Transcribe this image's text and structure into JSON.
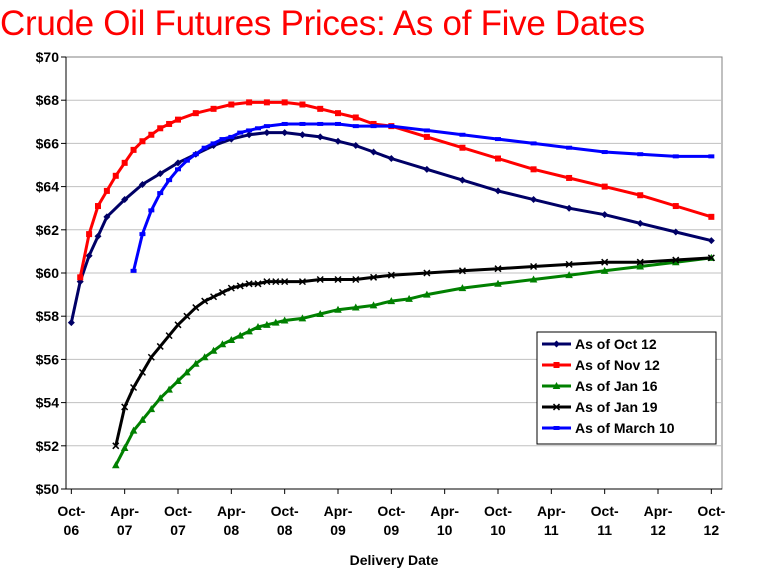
{
  "chart_data": {
    "type": "line",
    "title": "Crude Oil Futures Prices:  As of Five Dates",
    "xlabel": "Delivery Date",
    "ylabel": "",
    "ylim": [
      50,
      70
    ],
    "y_ticks": [
      "$50",
      "$52",
      "$54",
      "$56",
      "$58",
      "$60",
      "$62",
      "$64",
      "$66",
      "$68",
      "$70"
    ],
    "y_tick_values": [
      50,
      52,
      54,
      56,
      58,
      60,
      62,
      64,
      66,
      68,
      70
    ],
    "x_ticks": [
      {
        "line1": "Oct-",
        "line2": "06",
        "month_index": 0
      },
      {
        "line1": "Apr-",
        "line2": "07",
        "month_index": 6
      },
      {
        "line1": "Oct-",
        "line2": "07",
        "month_index": 12
      },
      {
        "line1": "Apr-",
        "line2": "08",
        "month_index": 18
      },
      {
        "line1": "Oct-",
        "line2": "08",
        "month_index": 24
      },
      {
        "line1": "Apr-",
        "line2": "09",
        "month_index": 30
      },
      {
        "line1": "Oct-",
        "line2": "09",
        "month_index": 36
      },
      {
        "line1": "Apr-",
        "line2": "10",
        "month_index": 42
      },
      {
        "line1": "Oct-",
        "line2": "10",
        "month_index": 48
      },
      {
        "line1": "Apr-",
        "line2": "11",
        "month_index": 54
      },
      {
        "line1": "Oct-",
        "line2": "11",
        "month_index": 60
      },
      {
        "line1": "Apr-",
        "line2": "12",
        "month_index": 66
      },
      {
        "line1": "Oct-",
        "line2": "12",
        "month_index": 72
      }
    ],
    "x_range_months": [
      -0.6,
      73.2
    ],
    "x_note": "x values are months since Oct-06",
    "legend_position": "bottom-right",
    "series": [
      {
        "name": "As of Oct 12",
        "color": "#000066",
        "marker": "diamond",
        "x": [
          0,
          1,
          2,
          3,
          4,
          6,
          8,
          10,
          12,
          14,
          16,
          18,
          20,
          22,
          24,
          26,
          28,
          30,
          32,
          34,
          36,
          40,
          44,
          48,
          52,
          56,
          60,
          64,
          68,
          72
        ],
        "y": [
          57.7,
          59.6,
          60.8,
          61.7,
          62.6,
          63.4,
          64.1,
          64.6,
          65.1,
          65.5,
          65.9,
          66.2,
          66.4,
          66.5,
          66.5,
          66.4,
          66.3,
          66.1,
          65.9,
          65.6,
          65.3,
          64.8,
          64.3,
          63.8,
          63.4,
          63.0,
          62.7,
          62.3,
          61.9,
          61.5
        ]
      },
      {
        "name": "As of Nov 12",
        "color": "#ff0000",
        "marker": "square",
        "x": [
          1,
          2,
          3,
          4,
          5,
          6,
          7,
          8,
          9,
          10,
          11,
          12,
          14,
          16,
          18,
          20,
          22,
          24,
          26,
          28,
          30,
          32,
          34,
          36,
          40,
          44,
          48,
          52,
          56,
          60,
          64,
          68,
          72
        ],
        "y": [
          59.8,
          61.8,
          63.1,
          63.8,
          64.5,
          65.1,
          65.7,
          66.1,
          66.4,
          66.7,
          66.9,
          67.1,
          67.4,
          67.6,
          67.8,
          67.9,
          67.9,
          67.9,
          67.8,
          67.6,
          67.4,
          67.2,
          66.9,
          66.8,
          66.3,
          65.8,
          65.3,
          64.8,
          64.4,
          64.0,
          63.6,
          63.1,
          62.6
        ]
      },
      {
        "name": "As of Jan 16",
        "color": "#008000",
        "marker": "triangle",
        "x": [
          5,
          6,
          7,
          8,
          9,
          10,
          11,
          12,
          13,
          14,
          15,
          16,
          17,
          18,
          19,
          20,
          21,
          22,
          23,
          24,
          26,
          28,
          30,
          32,
          34,
          36,
          38,
          40,
          44,
          48,
          52,
          56,
          60,
          64,
          68,
          72
        ],
        "y": [
          51.1,
          51.9,
          52.7,
          53.2,
          53.7,
          54.2,
          54.6,
          55.0,
          55.4,
          55.8,
          56.1,
          56.4,
          56.7,
          56.9,
          57.1,
          57.3,
          57.5,
          57.6,
          57.7,
          57.8,
          57.9,
          58.1,
          58.3,
          58.4,
          58.5,
          58.7,
          58.8,
          59.0,
          59.3,
          59.5,
          59.7,
          59.9,
          60.1,
          60.3,
          60.5,
          60.7
        ]
      },
      {
        "name": "As of Jan 19",
        "color": "#000000",
        "marker": "cross",
        "x": [
          5,
          6,
          7,
          8,
          9,
          10,
          11,
          12,
          13,
          14,
          15,
          16,
          17,
          18,
          19,
          20,
          21,
          22,
          23,
          24,
          26,
          28,
          30,
          32,
          34,
          36,
          40,
          44,
          48,
          52,
          56,
          60,
          64,
          68,
          72
        ],
        "y": [
          52.0,
          53.8,
          54.7,
          55.4,
          56.1,
          56.6,
          57.1,
          57.6,
          58.0,
          58.4,
          58.7,
          58.9,
          59.1,
          59.3,
          59.4,
          59.5,
          59.5,
          59.6,
          59.6,
          59.6,
          59.6,
          59.7,
          59.7,
          59.7,
          59.8,
          59.9,
          60.0,
          60.1,
          60.2,
          60.3,
          60.4,
          60.5,
          60.5,
          60.6,
          60.7
        ]
      },
      {
        "name": "As of March 10",
        "color": "#0000ff",
        "marker": "dash",
        "x": [
          7,
          8,
          9,
          10,
          11,
          12,
          13,
          14,
          15,
          16,
          17,
          18,
          19,
          20,
          21,
          22,
          24,
          26,
          28,
          30,
          32,
          34,
          36,
          40,
          44,
          48,
          52,
          56,
          60,
          64,
          68,
          72
        ],
        "y": [
          60.1,
          61.8,
          62.9,
          63.7,
          64.3,
          64.8,
          65.2,
          65.5,
          65.8,
          66.0,
          66.2,
          66.3,
          66.5,
          66.6,
          66.7,
          66.8,
          66.9,
          66.9,
          66.9,
          66.9,
          66.8,
          66.8,
          66.8,
          66.6,
          66.4,
          66.2,
          66.0,
          65.8,
          65.6,
          65.5,
          65.4,
          65.4
        ]
      }
    ]
  }
}
